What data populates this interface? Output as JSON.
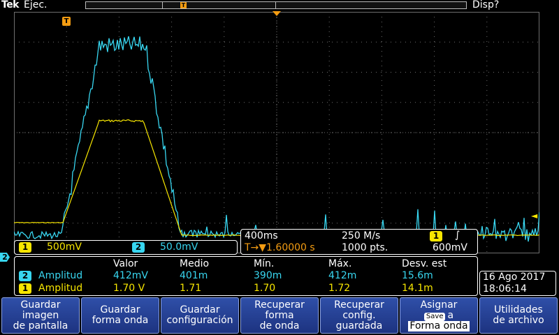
{
  "top": {
    "brand": "Tek",
    "run_state": "Ejec.",
    "display_state": "Disp?",
    "trigger_marker": "T"
  },
  "channel_markers": {
    "ch2": "2",
    "trigger_level": "◄"
  },
  "ch_readout": {
    "ch1_label": "1",
    "ch1_scale": "500mV",
    "ch2_label": "2",
    "ch2_scale": "50.0mV"
  },
  "timebase": {
    "time_div": "400ms",
    "sample_rate": "250 M/s",
    "trigger_source": "1",
    "trigger_slope": "∫",
    "trigger_pos": "T→▼1.60000 s",
    "record_length": "1000 pts.",
    "trigger_level": "600mV"
  },
  "measurements": {
    "headers": [
      "Valor",
      "Medio",
      "Mín.",
      "Máx.",
      "Desv. est"
    ],
    "rows": [
      {
        "channel": "2",
        "name": "Amplitud",
        "values": [
          "412mV",
          "401m",
          "390m",
          "412m",
          "15.6m"
        ]
      },
      {
        "channel": "1",
        "name": "Amplitud",
        "values": [
          "1.70 V",
          "1.71",
          "1.70",
          "1.72",
          "14.1m"
        ]
      }
    ]
  },
  "datetime": {
    "date": "16 Ago 2017",
    "time": "18:06:14"
  },
  "menu": {
    "b1": [
      "Guardar",
      "imagen",
      "de pantalla"
    ],
    "b2": [
      "Guardar",
      "forma onda"
    ],
    "b3": [
      "Guardar",
      "configuración"
    ],
    "b4": [
      "Recuperar",
      "forma",
      "de onda"
    ],
    "b5": [
      "Recuperar",
      "config.",
      "guardada"
    ],
    "b6_line1": "Asignar",
    "b6_chip": "Save",
    "b6_a": "a",
    "b6_line3": "Forma onda",
    "b7": [
      "Utilidades",
      "de archivo"
    ]
  },
  "colors": {
    "ch1": "#f7e600",
    "ch2": "#38d6f0",
    "trigger": "#f39c12",
    "grid": "#6e6e6e"
  }
}
